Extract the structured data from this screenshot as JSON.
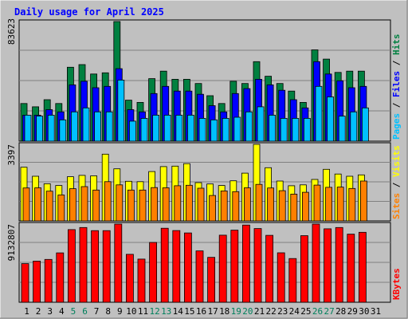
{
  "chart_data": [
    {
      "type": "bar",
      "title": "Daily usage for April 2025",
      "x": [
        "1",
        "2",
        "3",
        "4",
        "5",
        "6",
        "7",
        "8",
        "9",
        "10",
        "11",
        "12",
        "13",
        "14",
        "15",
        "16",
        "17",
        "18",
        "19",
        "20",
        "21",
        "22",
        "23",
        "24",
        "25",
        "26",
        "27",
        "28",
        "29",
        "30",
        "31"
      ],
      "weekend_days": [
        5,
        6,
        12,
        13,
        19,
        20,
        26,
        27
      ],
      "ytick": "83623",
      "ylim": [
        0,
        83623
      ],
      "series": [
        {
          "name": "Hits",
          "color": "#008040",
          "values": [
            26330,
            24010,
            29000,
            26330,
            51700,
            53520,
            46930,
            47780,
            83623,
            28660,
            27120,
            43680,
            48950,
            43250,
            43250,
            40310,
            31780,
            26330,
            41870,
            40310,
            55580,
            45380,
            40310,
            34990,
            27120,
            63810,
            57350,
            48080,
            48950,
            48950,
            0
          ]
        },
        {
          "name": "Files",
          "color": "#0000ff",
          "values": [
            18180,
            18180,
            22040,
            20480,
            39360,
            41870,
            37360,
            38310,
            50680,
            22040,
            20480,
            33270,
            38310,
            34990,
            34990,
            32800,
            24800,
            20480,
            33270,
            36740,
            43250,
            39360,
            35580,
            29000,
            23270,
            55580,
            46930,
            42200,
            37360,
            38310,
            0
          ]
        },
        {
          "name": "Pages",
          "color": "#00c0ff",
          "values": [
            18180,
            17480,
            18180,
            14860,
            20480,
            23270,
            20480,
            20480,
            42680,
            14010,
            15950,
            18180,
            18180,
            18180,
            18180,
            15950,
            14860,
            15950,
            16720,
            20480,
            24010,
            18180,
            15950,
            15950,
            15950,
            38310,
            30960,
            17480,
            20480,
            23270,
            0
          ]
        }
      ]
    },
    {
      "type": "bar",
      "ytick": "3397",
      "ylim": [
        0,
        3397
      ],
      "series": [
        {
          "name": "Visits",
          "color": "#ffff00",
          "values": [
            2380,
            1980,
            1650,
            1570,
            1960,
            2020,
            2000,
            2960,
            2310,
            1760,
            1740,
            2190,
            2410,
            2430,
            2540,
            1700,
            1640,
            1570,
            1780,
            2120,
            3397,
            2360,
            1770,
            1560,
            1600,
            1840,
            2290,
            2080,
            1980,
            2040,
            0
          ]
        },
        {
          "name": "Sites",
          "color": "#ff8000",
          "values": [
            1460,
            1470,
            1320,
            1150,
            1430,
            1520,
            1370,
            1740,
            1600,
            1370,
            1370,
            1480,
            1470,
            1560,
            1580,
            1450,
            1130,
            1330,
            1300,
            1470,
            1620,
            1460,
            1340,
            1190,
            1270,
            1590,
            1490,
            1500,
            1440,
            1770,
            0
          ]
        }
      ]
    },
    {
      "type": "bar",
      "ytick": "9132807",
      "ylim": [
        0,
        9132807
      ],
      "series": [
        {
          "name": "KBytes",
          "color": "#ff0000",
          "values": [
            4510000,
            4810000,
            5000000,
            5770000,
            8490000,
            8730000,
            8370000,
            8370000,
            9132807,
            5600000,
            5040000,
            6990000,
            8650000,
            8380000,
            8100000,
            6000000,
            5250000,
            7840000,
            8420000,
            9020000,
            8610000,
            7820000,
            5780000,
            5110000,
            7780000,
            9132807,
            8580000,
            8730000,
            7960000,
            8170000,
            0
          ]
        }
      ]
    }
  ],
  "right_labels": {
    "panel1": [
      {
        "text": "Pages",
        "color": "#00c0ff"
      },
      {
        "text": " / ",
        "color": "#000000"
      },
      {
        "text": "Files",
        "color": "#0000ff"
      },
      {
        "text": " / ",
        "color": "#000000"
      },
      {
        "text": "Hits",
        "color": "#008040"
      }
    ],
    "panel2": [
      {
        "text": "Sites",
        "color": "#ff8000"
      },
      {
        "text": " / ",
        "color": "#000000"
      },
      {
        "text": "Visits",
        "color": "#ffff00"
      }
    ],
    "panel3": [
      {
        "text": "KBytes",
        "color": "#ff0000"
      }
    ]
  },
  "colors": {
    "background": "#c0c0c0",
    "panel": "#c0c0c0",
    "grid": "#808080",
    "title": "#0000ff",
    "weekday": "#000000",
    "weekend": "#00805c"
  }
}
